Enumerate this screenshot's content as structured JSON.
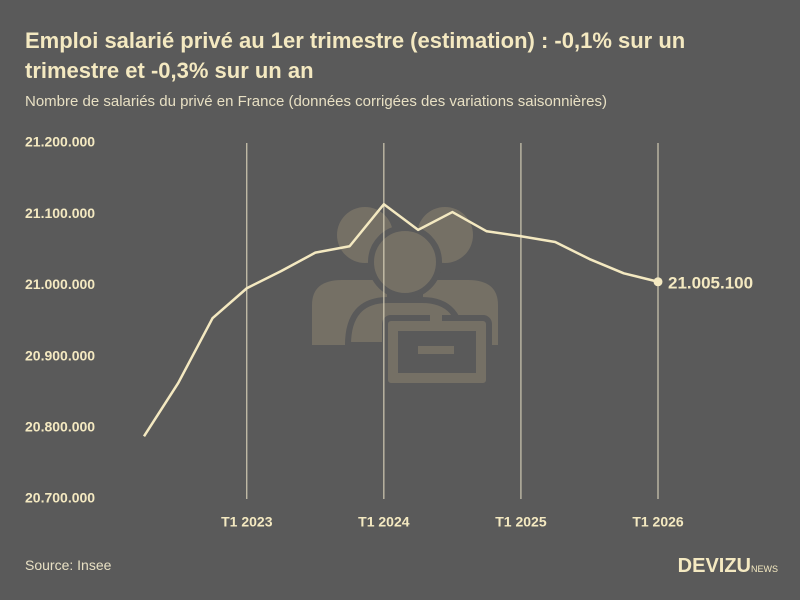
{
  "chart_data": {
    "type": "line",
    "title": "Emploi salarié privé au 1er trimestre (estimation) : -0,1% sur un trimestre et -0,3% sur un an",
    "subtitle": "Nombre de salariés du privé en France (données corrigées des variations saisonnières)",
    "source": "Source: Insee",
    "brand": "DEVIZU",
    "brand_suffix": "NEWS",
    "categories": [
      null,
      null,
      null,
      "T1 2023",
      null,
      null,
      null,
      "T1 2024",
      null,
      null,
      null,
      "T1 2025",
      null,
      null,
      null,
      "T1 2026"
    ],
    "series": [
      {
        "color": "#f4e9c1",
        "values": [
          20788000,
          20863000,
          20954000,
          20996000,
          21020000,
          21046000,
          21055000,
          21114000,
          21078000,
          21103000,
          21076000,
          21069000,
          21061000,
          21037000,
          21017000,
          21005100
        ],
        "value_labels": [
          null,
          null,
          null,
          null,
          null,
          null,
          null,
          null,
          null,
          null,
          null,
          null,
          null,
          null,
          null,
          "21.005.100"
        ]
      }
    ],
    "ylim": [
      20700000,
      21200000
    ],
    "yticks": [
      {
        "value": 20700000,
        "label": "20.700.000"
      },
      {
        "value": 20800000,
        "label": "20.800.000"
      },
      {
        "value": 20900000,
        "label": "20.900.000"
      },
      {
        "value": 21000000,
        "label": "21.000.000"
      },
      {
        "value": 21100000,
        "label": "21.100.000"
      },
      {
        "value": 21200000,
        "label": "21.200.000"
      }
    ],
    "grid": true
  }
}
